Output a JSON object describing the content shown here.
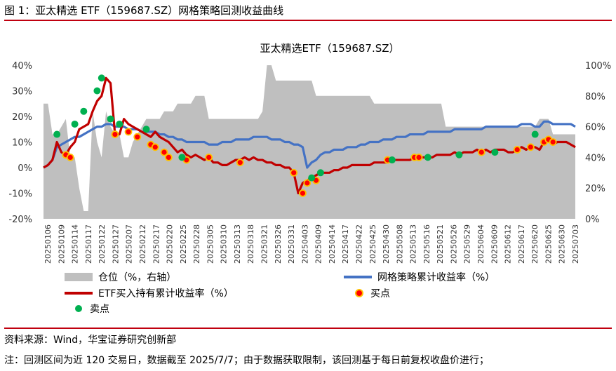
{
  "figure": {
    "label": "图 1：亚太精选 ETF（159687.SZ）网格策略回测收益曲线",
    "source": "资料来源：Wind，华宝证券研究创新部",
    "note": "注：回测区间为近 120 交易日，数据截至 2025/7/7；由于数据获取限制，该回测基于每日前复权收盘价进行；"
  },
  "chart_data": {
    "type": "line",
    "title": "亚太精选ETF（159687.SZ）",
    "x_tick_labels": [
      "20250106",
      "20250109",
      "20250114",
      "20250117",
      "20250122",
      "20250127",
      "20250207",
      "20250212",
      "20250217",
      "20250220",
      "20250225",
      "20250228",
      "20250305",
      "20250310",
      "20250313",
      "20250318",
      "20250321",
      "20250326",
      "20250331",
      "20250403",
      "20250409",
      "20250414",
      "20250417",
      "20250422",
      "20250425",
      "20250430",
      "20250508",
      "20250513",
      "20250516",
      "20250521",
      "20250526",
      "20250529",
      "20250604",
      "20250609",
      "20250612",
      "20250617",
      "20250620",
      "20250625",
      "20250630",
      "20250703"
    ],
    "y_left": {
      "ylim": [
        -20,
        40
      ],
      "ticks": [
        -20,
        -10,
        0,
        10,
        20,
        30,
        40
      ],
      "tick_labels": [
        "-20%",
        "-10%",
        "0%",
        "10%",
        "20%",
        "30%",
        "40%"
      ]
    },
    "y_right": {
      "ylim": [
        0,
        100
      ],
      "ticks": [
        0,
        20,
        40,
        60,
        80,
        100
      ],
      "tick_labels": [
        "0%",
        "20%",
        "40%",
        "60%",
        "80%",
        "100%"
      ]
    },
    "grid": false,
    "legend_position": "bottom",
    "legend": {
      "position": "仓位（%，右轴）",
      "grid_strategy": "网格策略累计收益率（%）",
      "etf_hold": "ETF买入持有累计收益率（%）",
      "buy": "买点",
      "sell": "卖点"
    },
    "colors": {
      "position": "#bfbfbf",
      "grid_strategy": "#4472c4",
      "etf_hold": "#c00000",
      "buy": "#ff0000",
      "sell": "#00b050",
      "buy_marker_border": "#ffc000"
    },
    "position_pct": [
      75,
      75,
      55,
      55,
      60,
      65,
      40,
      40,
      20,
      5,
      5,
      70,
      50,
      40,
      70,
      60,
      55,
      55,
      40,
      40,
      50,
      55,
      60,
      65,
      65,
      65,
      65,
      70,
      70,
      70,
      75,
      75,
      75,
      75,
      80,
      80,
      80,
      65,
      65,
      65,
      65,
      65,
      65,
      65,
      65,
      65,
      65,
      65,
      65,
      70,
      100,
      100,
      90,
      90,
      90,
      90,
      90,
      90,
      90,
      90,
      90,
      80,
      80,
      80,
      80,
      80,
      80,
      80,
      80,
      80,
      80,
      80,
      80,
      80,
      75,
      75,
      75,
      75,
      75,
      75,
      75,
      75,
      75,
      75,
      75,
      75,
      75,
      75,
      75,
      75,
      60,
      60,
      60,
      60,
      60,
      60,
      60,
      60,
      60,
      60,
      60,
      60,
      60,
      60,
      60,
      60,
      60,
      60,
      60,
      60,
      60,
      65,
      65,
      65,
      55,
      55,
      55,
      55,
      55,
      55
    ],
    "etf_hold_pct": [
      0,
      1,
      3,
      10,
      6,
      5,
      8,
      10,
      15,
      16,
      17,
      22,
      26,
      28,
      35,
      33,
      13,
      13,
      19,
      17,
      16,
      15,
      14,
      13,
      12,
      14,
      12,
      11,
      10,
      8,
      6,
      7,
      5,
      4,
      5,
      4,
      3,
      4,
      2,
      2,
      1,
      1,
      2,
      3,
      3,
      4,
      3,
      4,
      3,
      3,
      2,
      2,
      1,
      1,
      0,
      0,
      -2,
      -10,
      -6,
      -5,
      -4,
      -3,
      -2,
      -2,
      -2,
      -1,
      -1,
      0,
      0,
      1,
      1,
      1,
      1,
      1,
      2,
      2,
      2,
      2,
      3,
      3,
      3,
      3,
      3,
      4,
      4,
      4,
      4,
      4,
      5,
      5,
      5,
      5,
      6,
      5,
      6,
      6,
      6,
      7,
      6,
      7,
      6,
      7,
      7,
      7,
      6,
      6,
      7,
      8,
      7,
      8,
      8,
      7,
      10,
      11,
      9,
      10,
      10,
      10,
      9,
      8
    ],
    "grid_strategy_pct": [
      0,
      1,
      3,
      8,
      9,
      10,
      11,
      12,
      12,
      13,
      14,
      15,
      16,
      16,
      17,
      17,
      16,
      16,
      16,
      15,
      15,
      15,
      14,
      14,
      14,
      14,
      13,
      13,
      12,
      12,
      11,
      11,
      10,
      10,
      10,
      10,
      10,
      9,
      9,
      9,
      10,
      10,
      10,
      11,
      11,
      11,
      11,
      12,
      12,
      12,
      12,
      11,
      11,
      11,
      10,
      10,
      9,
      9,
      8,
      0,
      2,
      3,
      5,
      6,
      6,
      7,
      7,
      7,
      8,
      8,
      8,
      9,
      9,
      10,
      10,
      10,
      11,
      11,
      11,
      12,
      12,
      12,
      13,
      13,
      13,
      13,
      14,
      14,
      14,
      14,
      14,
      14,
      15,
      15,
      15,
      15,
      15,
      15,
      15,
      16,
      16,
      16,
      16,
      16,
      16,
      16,
      16,
      17,
      17,
      17,
      16,
      16,
      18,
      18,
      17,
      17,
      17,
      17,
      17,
      16
    ],
    "buy_points": [
      [
        5,
        5
      ],
      [
        6,
        4
      ],
      [
        16,
        13
      ],
      [
        19,
        14
      ],
      [
        21,
        12
      ],
      [
        24,
        9
      ],
      [
        25,
        8
      ],
      [
        27,
        6
      ],
      [
        28,
        4
      ],
      [
        32,
        3
      ],
      [
        37,
        4
      ],
      [
        44,
        2
      ],
      [
        56,
        -2
      ],
      [
        58,
        -10
      ],
      [
        59,
        -6
      ],
      [
        61,
        -5
      ],
      [
        77,
        3
      ],
      [
        83,
        4
      ],
      [
        84,
        4
      ],
      [
        98,
        6
      ],
      [
        106,
        7
      ],
      [
        109,
        8
      ],
      [
        112,
        10
      ],
      [
        113,
        11
      ],
      [
        114,
        10
      ]
    ],
    "sell_points": [
      [
        3,
        13
      ],
      [
        7,
        17
      ],
      [
        9,
        22
      ],
      [
        12,
        30
      ],
      [
        13,
        35
      ],
      [
        15,
        19
      ],
      [
        17,
        17
      ],
      [
        23,
        15
      ],
      [
        31,
        4
      ],
      [
        60,
        -4
      ],
      [
        62,
        -2
      ],
      [
        78,
        3
      ],
      [
        86,
        4
      ],
      [
        93,
        5
      ],
      [
        101,
        6
      ],
      [
        110,
        13
      ]
    ]
  }
}
